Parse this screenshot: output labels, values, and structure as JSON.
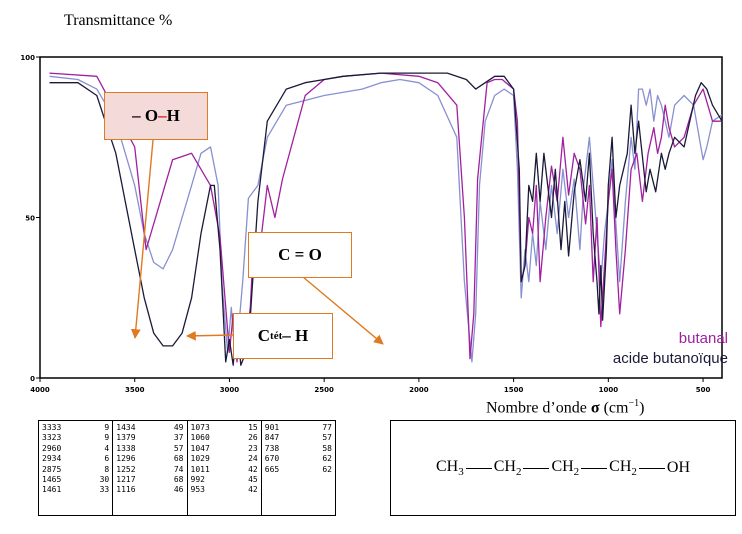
{
  "chart_data": {
    "type": "line",
    "ylabel": "Transmittance %",
    "xlabel_prefix": "Nombre d’onde ",
    "xlabel_symbol": "σ",
    "xlabel_unit": " (cm",
    "xlabel_exp": "−1",
    "xlabel_suffix": ")",
    "xlim": [
      4000,
      400
    ],
    "ylim": [
      0,
      100
    ],
    "x_ticks": [
      4000,
      3500,
      3000,
      2500,
      2000,
      1500,
      1000,
      500
    ],
    "y_ticks": [
      0,
      50,
      100
    ],
    "grid": false,
    "series": [
      {
        "name": "butanal",
        "color": "#a020a0",
        "points": [
          [
            3950,
            95
          ],
          [
            3700,
            94
          ],
          [
            3500,
            72
          ],
          [
            3440,
            40
          ],
          [
            3380,
            52
          ],
          [
            3300,
            68
          ],
          [
            3200,
            70
          ],
          [
            3100,
            60
          ],
          [
            3050,
            44
          ],
          [
            3000,
            8
          ],
          [
            2980,
            20
          ],
          [
            2960,
            5
          ],
          [
            2940,
            19
          ],
          [
            2920,
            8
          ],
          [
            2890,
            22
          ],
          [
            2870,
            45
          ],
          [
            2850,
            35
          ],
          [
            2800,
            60
          ],
          [
            2760,
            50
          ],
          [
            2720,
            62
          ],
          [
            2600,
            88
          ],
          [
            2500,
            93
          ],
          [
            2400,
            94
          ],
          [
            2200,
            95
          ],
          [
            2000,
            94
          ],
          [
            1900,
            92
          ],
          [
            1800,
            85
          ],
          [
            1760,
            50
          ],
          [
            1730,
            6
          ],
          [
            1710,
            20
          ],
          [
            1690,
            62
          ],
          [
            1640,
            92
          ],
          [
            1600,
            93
          ],
          [
            1560,
            93
          ],
          [
            1500,
            90
          ],
          [
            1480,
            80
          ],
          [
            1460,
            30
          ],
          [
            1440,
            35
          ],
          [
            1420,
            50
          ],
          [
            1400,
            45
          ],
          [
            1380,
            60
          ],
          [
            1360,
            30
          ],
          [
            1330,
            50
          ],
          [
            1300,
            66
          ],
          [
            1270,
            55
          ],
          [
            1240,
            75
          ],
          [
            1210,
            57
          ],
          [
            1180,
            70
          ],
          [
            1150,
            65
          ],
          [
            1120,
            48
          ],
          [
            1100,
            60
          ],
          [
            1080,
            30
          ],
          [
            1060,
            50
          ],
          [
            1040,
            16
          ],
          [
            1020,
            35
          ],
          [
            1000,
            55
          ],
          [
            980,
            65
          ],
          [
            960,
            40
          ],
          [
            940,
            20
          ],
          [
            910,
            40
          ],
          [
            880,
            65
          ],
          [
            850,
            70
          ],
          [
            820,
            55
          ],
          [
            790,
            70
          ],
          [
            760,
            78
          ],
          [
            740,
            70
          ],
          [
            720,
            75
          ],
          [
            700,
            85
          ],
          [
            680,
            78
          ],
          [
            650,
            72
          ],
          [
            600,
            75
          ],
          [
            550,
            85
          ],
          [
            500,
            90
          ],
          [
            450,
            80
          ],
          [
            400,
            80
          ]
        ]
      },
      {
        "name": "acide butanoïque",
        "color": "#1a1a38",
        "points": [
          [
            3950,
            92
          ],
          [
            3800,
            92
          ],
          [
            3700,
            88
          ],
          [
            3600,
            70
          ],
          [
            3500,
            40
          ],
          [
            3450,
            25
          ],
          [
            3400,
            14
          ],
          [
            3350,
            10
          ],
          [
            3300,
            10
          ],
          [
            3250,
            14
          ],
          [
            3200,
            25
          ],
          [
            3150,
            45
          ],
          [
            3100,
            60
          ],
          [
            3080,
            60
          ],
          [
            3050,
            40
          ],
          [
            3020,
            5
          ],
          [
            3000,
            12
          ],
          [
            2980,
            4
          ],
          [
            2960,
            18
          ],
          [
            2940,
            4
          ],
          [
            2900,
            10
          ],
          [
            2850,
            55
          ],
          [
            2800,
            80
          ],
          [
            2700,
            90
          ],
          [
            2600,
            92
          ],
          [
            2500,
            93
          ],
          [
            2400,
            94
          ],
          [
            2200,
            95
          ],
          [
            2000,
            95
          ],
          [
            1850,
            95
          ],
          [
            1750,
            93
          ],
          [
            1700,
            90
          ],
          [
            1650,
            92
          ],
          [
            1600,
            94
          ],
          [
            1550,
            94
          ],
          [
            1500,
            90
          ],
          [
            1470,
            65
          ],
          [
            1460,
            30
          ],
          [
            1440,
            35
          ],
          [
            1420,
            60
          ],
          [
            1400,
            55
          ],
          [
            1380,
            70
          ],
          [
            1360,
            55
          ],
          [
            1340,
            70
          ],
          [
            1300,
            50
          ],
          [
            1280,
            65
          ],
          [
            1250,
            40
          ],
          [
            1230,
            55
          ],
          [
            1210,
            38
          ],
          [
            1180,
            58
          ],
          [
            1150,
            68
          ],
          [
            1120,
            55
          ],
          [
            1100,
            70
          ],
          [
            1080,
            45
          ],
          [
            1060,
            30
          ],
          [
            1050,
            20
          ],
          [
            1040,
            35
          ],
          [
            1030,
            18
          ],
          [
            1010,
            40
          ],
          [
            1000,
            60
          ],
          [
            980,
            75
          ],
          [
            960,
            50
          ],
          [
            940,
            60
          ],
          [
            900,
            70
          ],
          [
            880,
            85
          ],
          [
            860,
            70
          ],
          [
            840,
            80
          ],
          [
            800,
            58
          ],
          [
            780,
            65
          ],
          [
            750,
            58
          ],
          [
            720,
            70
          ],
          [
            700,
            65
          ],
          [
            680,
            70
          ],
          [
            650,
            75
          ],
          [
            600,
            72
          ],
          [
            570,
            80
          ],
          [
            540,
            88
          ],
          [
            510,
            92
          ],
          [
            480,
            90
          ],
          [
            450,
            85
          ],
          [
            400,
            80
          ]
        ]
      },
      {
        "name": "",
        "color": "#8890d0",
        "points": [
          [
            3950,
            94
          ],
          [
            3800,
            93
          ],
          [
            3700,
            90
          ],
          [
            3600,
            80
          ],
          [
            3550,
            70
          ],
          [
            3500,
            60
          ],
          [
            3450,
            45
          ],
          [
            3400,
            36
          ],
          [
            3350,
            34
          ],
          [
            3300,
            40
          ],
          [
            3250,
            50
          ],
          [
            3200,
            60
          ],
          [
            3150,
            70
          ],
          [
            3100,
            72
          ],
          [
            3060,
            60
          ],
          [
            3040,
            30
          ],
          [
            3010,
            8
          ],
          [
            2990,
            22
          ],
          [
            2970,
            6
          ],
          [
            2945,
            20
          ],
          [
            2930,
            30
          ],
          [
            2900,
            56
          ],
          [
            2850,
            60
          ],
          [
            2800,
            75
          ],
          [
            2700,
            85
          ],
          [
            2500,
            88
          ],
          [
            2300,
            90
          ],
          [
            2200,
            92
          ],
          [
            2100,
            93
          ],
          [
            2000,
            92
          ],
          [
            1900,
            88
          ],
          [
            1800,
            75
          ],
          [
            1760,
            30
          ],
          [
            1720,
            5
          ],
          [
            1700,
            20
          ],
          [
            1680,
            60
          ],
          [
            1650,
            80
          ],
          [
            1600,
            88
          ],
          [
            1550,
            90
          ],
          [
            1500,
            88
          ],
          [
            1480,
            65
          ],
          [
            1460,
            25
          ],
          [
            1440,
            40
          ],
          [
            1420,
            30
          ],
          [
            1400,
            45
          ],
          [
            1380,
            35
          ],
          [
            1360,
            55
          ],
          [
            1330,
            40
          ],
          [
            1300,
            60
          ],
          [
            1270,
            45
          ],
          [
            1240,
            65
          ],
          [
            1210,
            50
          ],
          [
            1180,
            62
          ],
          [
            1150,
            40
          ],
          [
            1130,
            60
          ],
          [
            1100,
            75
          ],
          [
            1080,
            60
          ],
          [
            1060,
            45
          ],
          [
            1040,
            30
          ],
          [
            1020,
            45
          ],
          [
            1000,
            55
          ],
          [
            980,
            68
          ],
          [
            960,
            48
          ],
          [
            940,
            30
          ],
          [
            910,
            55
          ],
          [
            880,
            75
          ],
          [
            860,
            65
          ],
          [
            840,
            90
          ],
          [
            820,
            90
          ],
          [
            800,
            85
          ],
          [
            780,
            90
          ],
          [
            760,
            80
          ],
          [
            740,
            88
          ],
          [
            720,
            85
          ],
          [
            700,
            80
          ],
          [
            680,
            75
          ],
          [
            650,
            85
          ],
          [
            600,
            88
          ],
          [
            550,
            85
          ],
          [
            500,
            68
          ],
          [
            480,
            72
          ],
          [
            450,
            80
          ],
          [
            400,
            82
          ]
        ]
      }
    ],
    "peak_table": [
      [
        [
          "3333",
          "9"
        ],
        [
          "3323",
          "9"
        ],
        [
          "2960",
          "4"
        ],
        [
          "2934",
          "6"
        ],
        [
          "2875",
          "8"
        ],
        [
          "1465",
          "30"
        ],
        [
          "1461",
          "33"
        ]
      ],
      [
        [
          "1434",
          "49"
        ],
        [
          "1379",
          "37"
        ],
        [
          "1338",
          "57"
        ],
        [
          "1296",
          "68"
        ],
        [
          "1252",
          "74"
        ],
        [
          "1217",
          "68"
        ],
        [
          "1116",
          "46"
        ]
      ],
      [
        [
          "1073",
          "15"
        ],
        [
          "1060",
          "26"
        ],
        [
          "1047",
          "23"
        ],
        [
          "1029",
          "24"
        ],
        [
          "1011",
          "42"
        ],
        [
          "992",
          "45"
        ],
        [
          "953",
          "42"
        ]
      ],
      [
        [
          "901",
          "77"
        ],
        [
          "847",
          "57"
        ],
        [
          "738",
          "58"
        ],
        [
          "670",
          "62"
        ],
        [
          "665",
          "62"
        ]
      ]
    ]
  },
  "callouts": {
    "oh": {
      "dash1": "– O ",
      "dash2": "–",
      "h": " H"
    },
    "co": "C = O",
    "ch": {
      "c": "C",
      "sub": "tét",
      "rest": " – H"
    }
  },
  "formula": {
    "groups": [
      {
        "main": "CH",
        "sub": "3"
      },
      {
        "main": "CH",
        "sub": "2"
      },
      {
        "main": "CH",
        "sub": "2"
      },
      {
        "main": "CH",
        "sub": "2"
      },
      {
        "main": "OH",
        "sub": ""
      }
    ]
  }
}
